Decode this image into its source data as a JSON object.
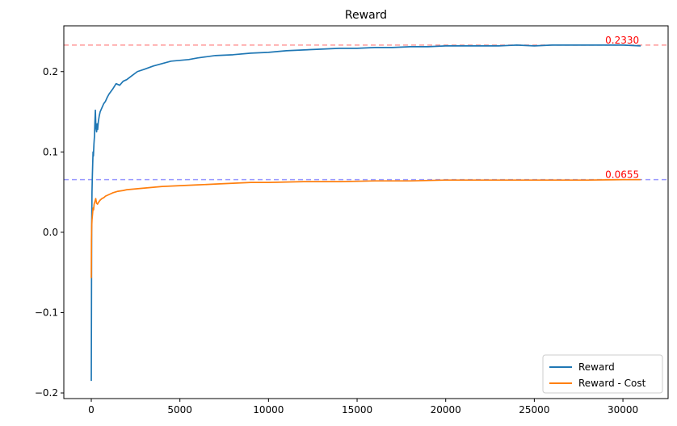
{
  "chart_data": {
    "type": "line",
    "title": "Reward",
    "xlabel": "",
    "ylabel": "",
    "xlim": [
      -1550,
      32550
    ],
    "ylim": [
      -0.207,
      0.257
    ],
    "xticks": [
      0,
      5000,
      10000,
      15000,
      20000,
      25000,
      30000
    ],
    "xtick_labels": [
      "0",
      "5000",
      "10000",
      "15000",
      "20000",
      "25000",
      "30000"
    ],
    "yticks": [
      -0.2,
      -0.1,
      0.0,
      0.1,
      0.2
    ],
    "ytick_labels": [
      "−0.2",
      "−0.1",
      "0.0",
      "0.1",
      "0.2"
    ],
    "grid": false,
    "legend_position": "lower-right",
    "series": [
      {
        "name": "Reward",
        "color": "#1f77b4",
        "x": [
          0,
          10,
          20,
          40,
          60,
          80,
          100,
          120,
          150,
          180,
          200,
          230,
          260,
          300,
          330,
          360,
          400,
          450,
          500,
          600,
          700,
          800,
          900,
          1000,
          1200,
          1400,
          1600,
          1800,
          2000,
          2300,
          2600,
          3000,
          3500,
          4000,
          4500,
          5000,
          5500,
          6000,
          7000,
          8000,
          9000,
          10000,
          11000,
          12000,
          13000,
          14000,
          15000,
          16000,
          17000,
          18000,
          19000,
          20000,
          21000,
          22000,
          23000,
          24000,
          25000,
          26000,
          27000,
          28000,
          29000,
          30000,
          31000
        ],
        "y": [
          -0.185,
          -0.1,
          0.0,
          0.05,
          0.07,
          0.085,
          0.1,
          0.095,
          0.11,
          0.12,
          0.135,
          0.152,
          0.13,
          0.125,
          0.135,
          0.128,
          0.138,
          0.145,
          0.15,
          0.155,
          0.16,
          0.163,
          0.168,
          0.172,
          0.178,
          0.185,
          0.183,
          0.188,
          0.19,
          0.195,
          0.2,
          0.203,
          0.207,
          0.21,
          0.213,
          0.214,
          0.215,
          0.217,
          0.22,
          0.221,
          0.223,
          0.224,
          0.226,
          0.227,
          0.228,
          0.229,
          0.229,
          0.23,
          0.23,
          0.231,
          0.231,
          0.232,
          0.232,
          0.232,
          0.232,
          0.233,
          0.232,
          0.233,
          0.233,
          0.233,
          0.233,
          0.233,
          0.232
        ]
      },
      {
        "name": "Reward - Cost",
        "color": "#ff7f0e",
        "x": [
          0,
          10,
          20,
          40,
          60,
          80,
          100,
          130,
          160,
          200,
          250,
          300,
          350,
          400,
          500,
          600,
          700,
          800,
          1000,
          1200,
          1500,
          1800,
          2000,
          2500,
          3000,
          3500,
          4000,
          5000,
          6000,
          7000,
          8000,
          9000,
          10000,
          12000,
          14000,
          16000,
          18000,
          20000,
          22000,
          24000,
          26000,
          28000,
          30000,
          31000
        ],
        "y": [
          -0.057,
          -0.01,
          0.005,
          0.015,
          0.02,
          0.025,
          0.03,
          0.028,
          0.035,
          0.038,
          0.042,
          0.036,
          0.035,
          0.037,
          0.04,
          0.042,
          0.043,
          0.045,
          0.047,
          0.049,
          0.051,
          0.052,
          0.053,
          0.054,
          0.055,
          0.056,
          0.057,
          0.058,
          0.059,
          0.06,
          0.061,
          0.062,
          0.062,
          0.063,
          0.063,
          0.064,
          0.064,
          0.065,
          0.065,
          0.065,
          0.065,
          0.065,
          0.0655,
          0.0655
        ]
      }
    ],
    "reference_lines": [
      {
        "y": 0.233,
        "color": "#ff9999",
        "label": "0.2330",
        "label_x": 29000
      },
      {
        "y": 0.0655,
        "color": "#9999ff",
        "label": "0.0655",
        "label_x": 29000
      }
    ],
    "annotation_color": "#ff0000"
  }
}
